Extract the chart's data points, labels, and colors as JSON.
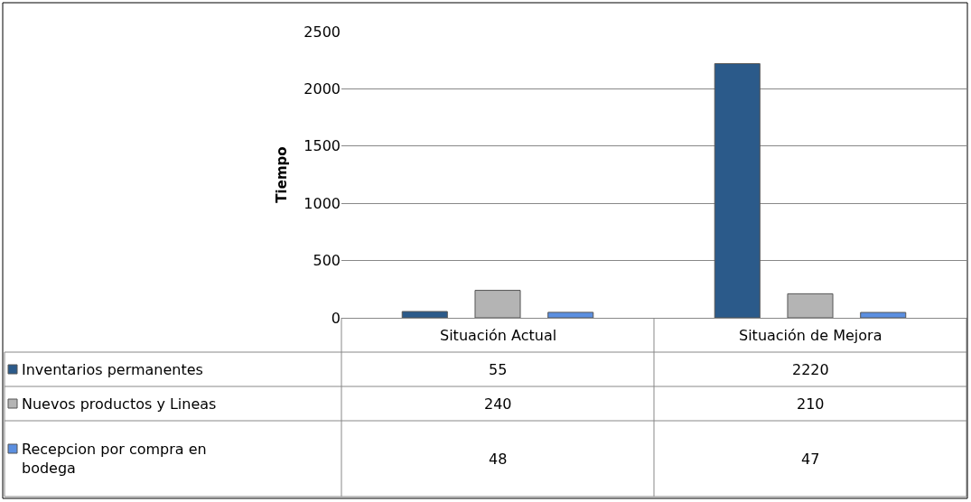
{
  "chart_data": {
    "type": "bar",
    "ylabel": "Tiempo",
    "categories": [
      "Situación Actual",
      "Situación de Mejora"
    ],
    "series": [
      {
        "name": "Inventarios permanentes",
        "color": "#2b5a8a",
        "values": [
          55,
          2220
        ]
      },
      {
        "name": "Nuevos productos y Lineas",
        "color": "#b4b4b4",
        "values": [
          240,
          210
        ]
      },
      {
        "name": "Recepcion por compra en bodega",
        "color": "#5b8fe0",
        "values": [
          48,
          47
        ]
      }
    ],
    "ylim": [
      0,
      2500
    ],
    "yticks": [
      0,
      500,
      1000,
      1500,
      2000,
      2500
    ],
    "grid": "y",
    "legend": "bottom left",
    "data_labels": true
  }
}
